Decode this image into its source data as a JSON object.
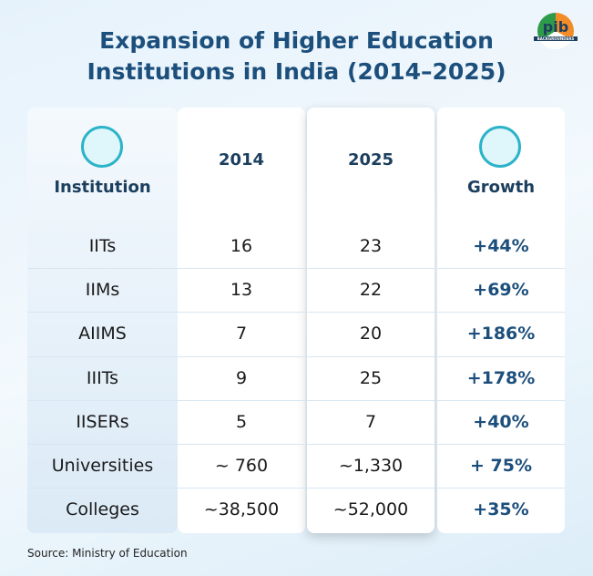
{
  "header": {
    "title_lines": [
      "Expansion of Higher Education",
      "Institutions in India (2014–2025)"
    ],
    "logo": "pib",
    "logo_sub": "BACKGROUNDERS"
  },
  "table": {
    "columns": [
      "Institution",
      "2014",
      "2025",
      "Growth"
    ],
    "rows": [
      [
        "IITs",
        16,
        23,
        "+44%"
      ],
      [
        "IIMs",
        13,
        22,
        "+69%"
      ],
      [
        "AIIMS",
        7,
        20,
        "+186%"
      ],
      [
        "IIITs",
        9,
        25,
        "+178%"
      ],
      [
        "IISERs",
        5,
        7,
        "+40%"
      ],
      [
        "Universities",
        "~ 760",
        "~1,330",
        "+ 75%"
      ],
      [
        "Colleges",
        "~38,500",
        "~52,000",
        "+35%"
      ]
    ]
  },
  "footer": {
    "source": "Source: Ministry of Education"
  }
}
